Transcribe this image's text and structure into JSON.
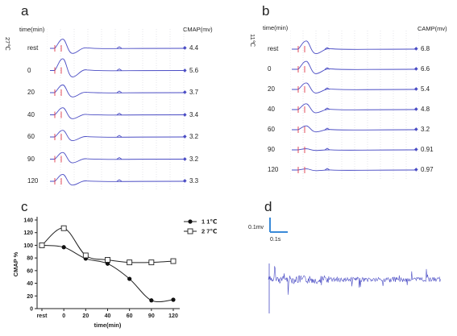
{
  "panel_a": {
    "letter": "a",
    "time_header": "time(min)",
    "value_header": "CMAP(mv)",
    "temperature": "27℃",
    "rows": [
      {
        "label": "rest",
        "value": "4.4"
      },
      {
        "label": "0",
        "value": "5.6"
      },
      {
        "label": "20",
        "value": "3.7"
      },
      {
        "label": "40",
        "value": "3.4"
      },
      {
        "label": "60",
        "value": "3.2"
      },
      {
        "label": "90",
        "value": "3.2"
      },
      {
        "label": "120",
        "value": "3.3"
      }
    ]
  },
  "panel_b": {
    "letter": "b",
    "time_header": "time(min)",
    "value_header": "CAMP(mv)",
    "temperature": "11℃",
    "rows": [
      {
        "label": "rest",
        "value": "6.8"
      },
      {
        "label": "0",
        "value": "6.6"
      },
      {
        "label": "20",
        "value": "5.4"
      },
      {
        "label": "40",
        "value": "4.8"
      },
      {
        "label": "60",
        "value": "3.2"
      },
      {
        "label": "90",
        "value": "0.91"
      },
      {
        "label": "120",
        "value": "0.97"
      }
    ]
  },
  "panel_d": {
    "letter": "d",
    "scale_y": "0.1mv",
    "scale_x": "0.1s"
  },
  "colors": {
    "trace": "#4a4cc4",
    "stim_marker": "#e03a4a",
    "scale_bar": "#3a8ad8",
    "grid": "#c9ccd6"
  },
  "chart_data": {
    "letter": "c",
    "type": "line",
    "ylabel": "CMAP %",
    "xlabel": "time(min)",
    "categories": [
      "rest",
      "0",
      "20",
      "40",
      "60",
      "90",
      "120"
    ],
    "ylim": [
      0,
      140
    ],
    "yticks": [
      "0",
      "20",
      "40",
      "60",
      "80",
      "100",
      "120",
      "140"
    ],
    "legend_position": "top-right",
    "series": [
      {
        "name": "1 1℃",
        "marker": "filled-circle",
        "values": [
          100,
          97,
          79,
          71,
          47,
          13,
          14
        ]
      },
      {
        "name": "2 7℃",
        "marker": "open-square",
        "values": [
          100,
          127,
          84,
          77,
          73,
          73,
          75
        ]
      }
    ]
  }
}
